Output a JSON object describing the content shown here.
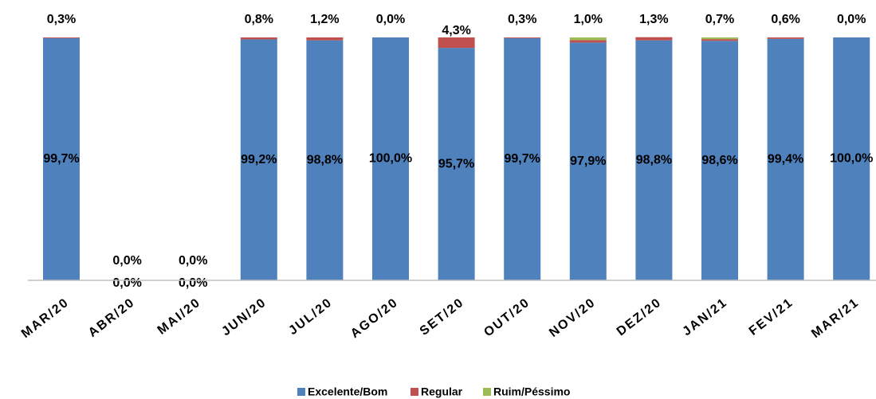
{
  "chart_data": {
    "type": "stacked_bar",
    "categories": [
      "MAR/20",
      "ABR/20",
      "MAI/20",
      "JUN/20",
      "JUL/20",
      "AGO/20",
      "SET/20",
      "OUT/20",
      "NOV/20",
      "DEZ/20",
      "JAN/21",
      "FEV/21",
      "MAR/21"
    ],
    "series": [
      {
        "name": "Excelente/Bom",
        "color": "#4f81bd",
        "values": [
          99.7,
          0,
          0,
          99.2,
          98.8,
          100,
          95.7,
          99.7,
          97.9,
          98.8,
          98.6,
          99.4,
          100
        ],
        "value_labels": [
          "99,7%",
          "0,0%",
          "0,0%",
          "99,2%",
          "98,8%",
          "100,0%",
          "95,7%",
          "99,7%",
          "97,9%",
          "98,8%",
          "98,6%",
          "99,4%",
          "100,0%"
        ]
      },
      {
        "name": "Regular",
        "color": "#c0504d",
        "values": [
          0.3,
          0,
          0,
          0.8,
          1.2,
          0,
          4.3,
          0.3,
          1.0,
          1.3,
          0.7,
          0.6,
          0
        ],
        "value_labels": [
          "0,3%",
          "0,0%",
          "0,0%",
          "0,8%",
          "1,2%",
          "0,0%",
          "4,3%",
          "0,3%",
          "1,0%",
          "1,3%",
          "0,7%",
          "0,6%",
          "0,0%"
        ]
      },
      {
        "name": "Ruim/Péssimo",
        "color": "#9bbb59",
        "values": [
          0,
          0,
          0,
          0,
          0,
          0,
          0,
          0,
          1.1,
          0,
          0.7,
          0,
          0
        ]
      }
    ],
    "ylim": [
      0,
      100
    ],
    "legend": "bottom"
  }
}
